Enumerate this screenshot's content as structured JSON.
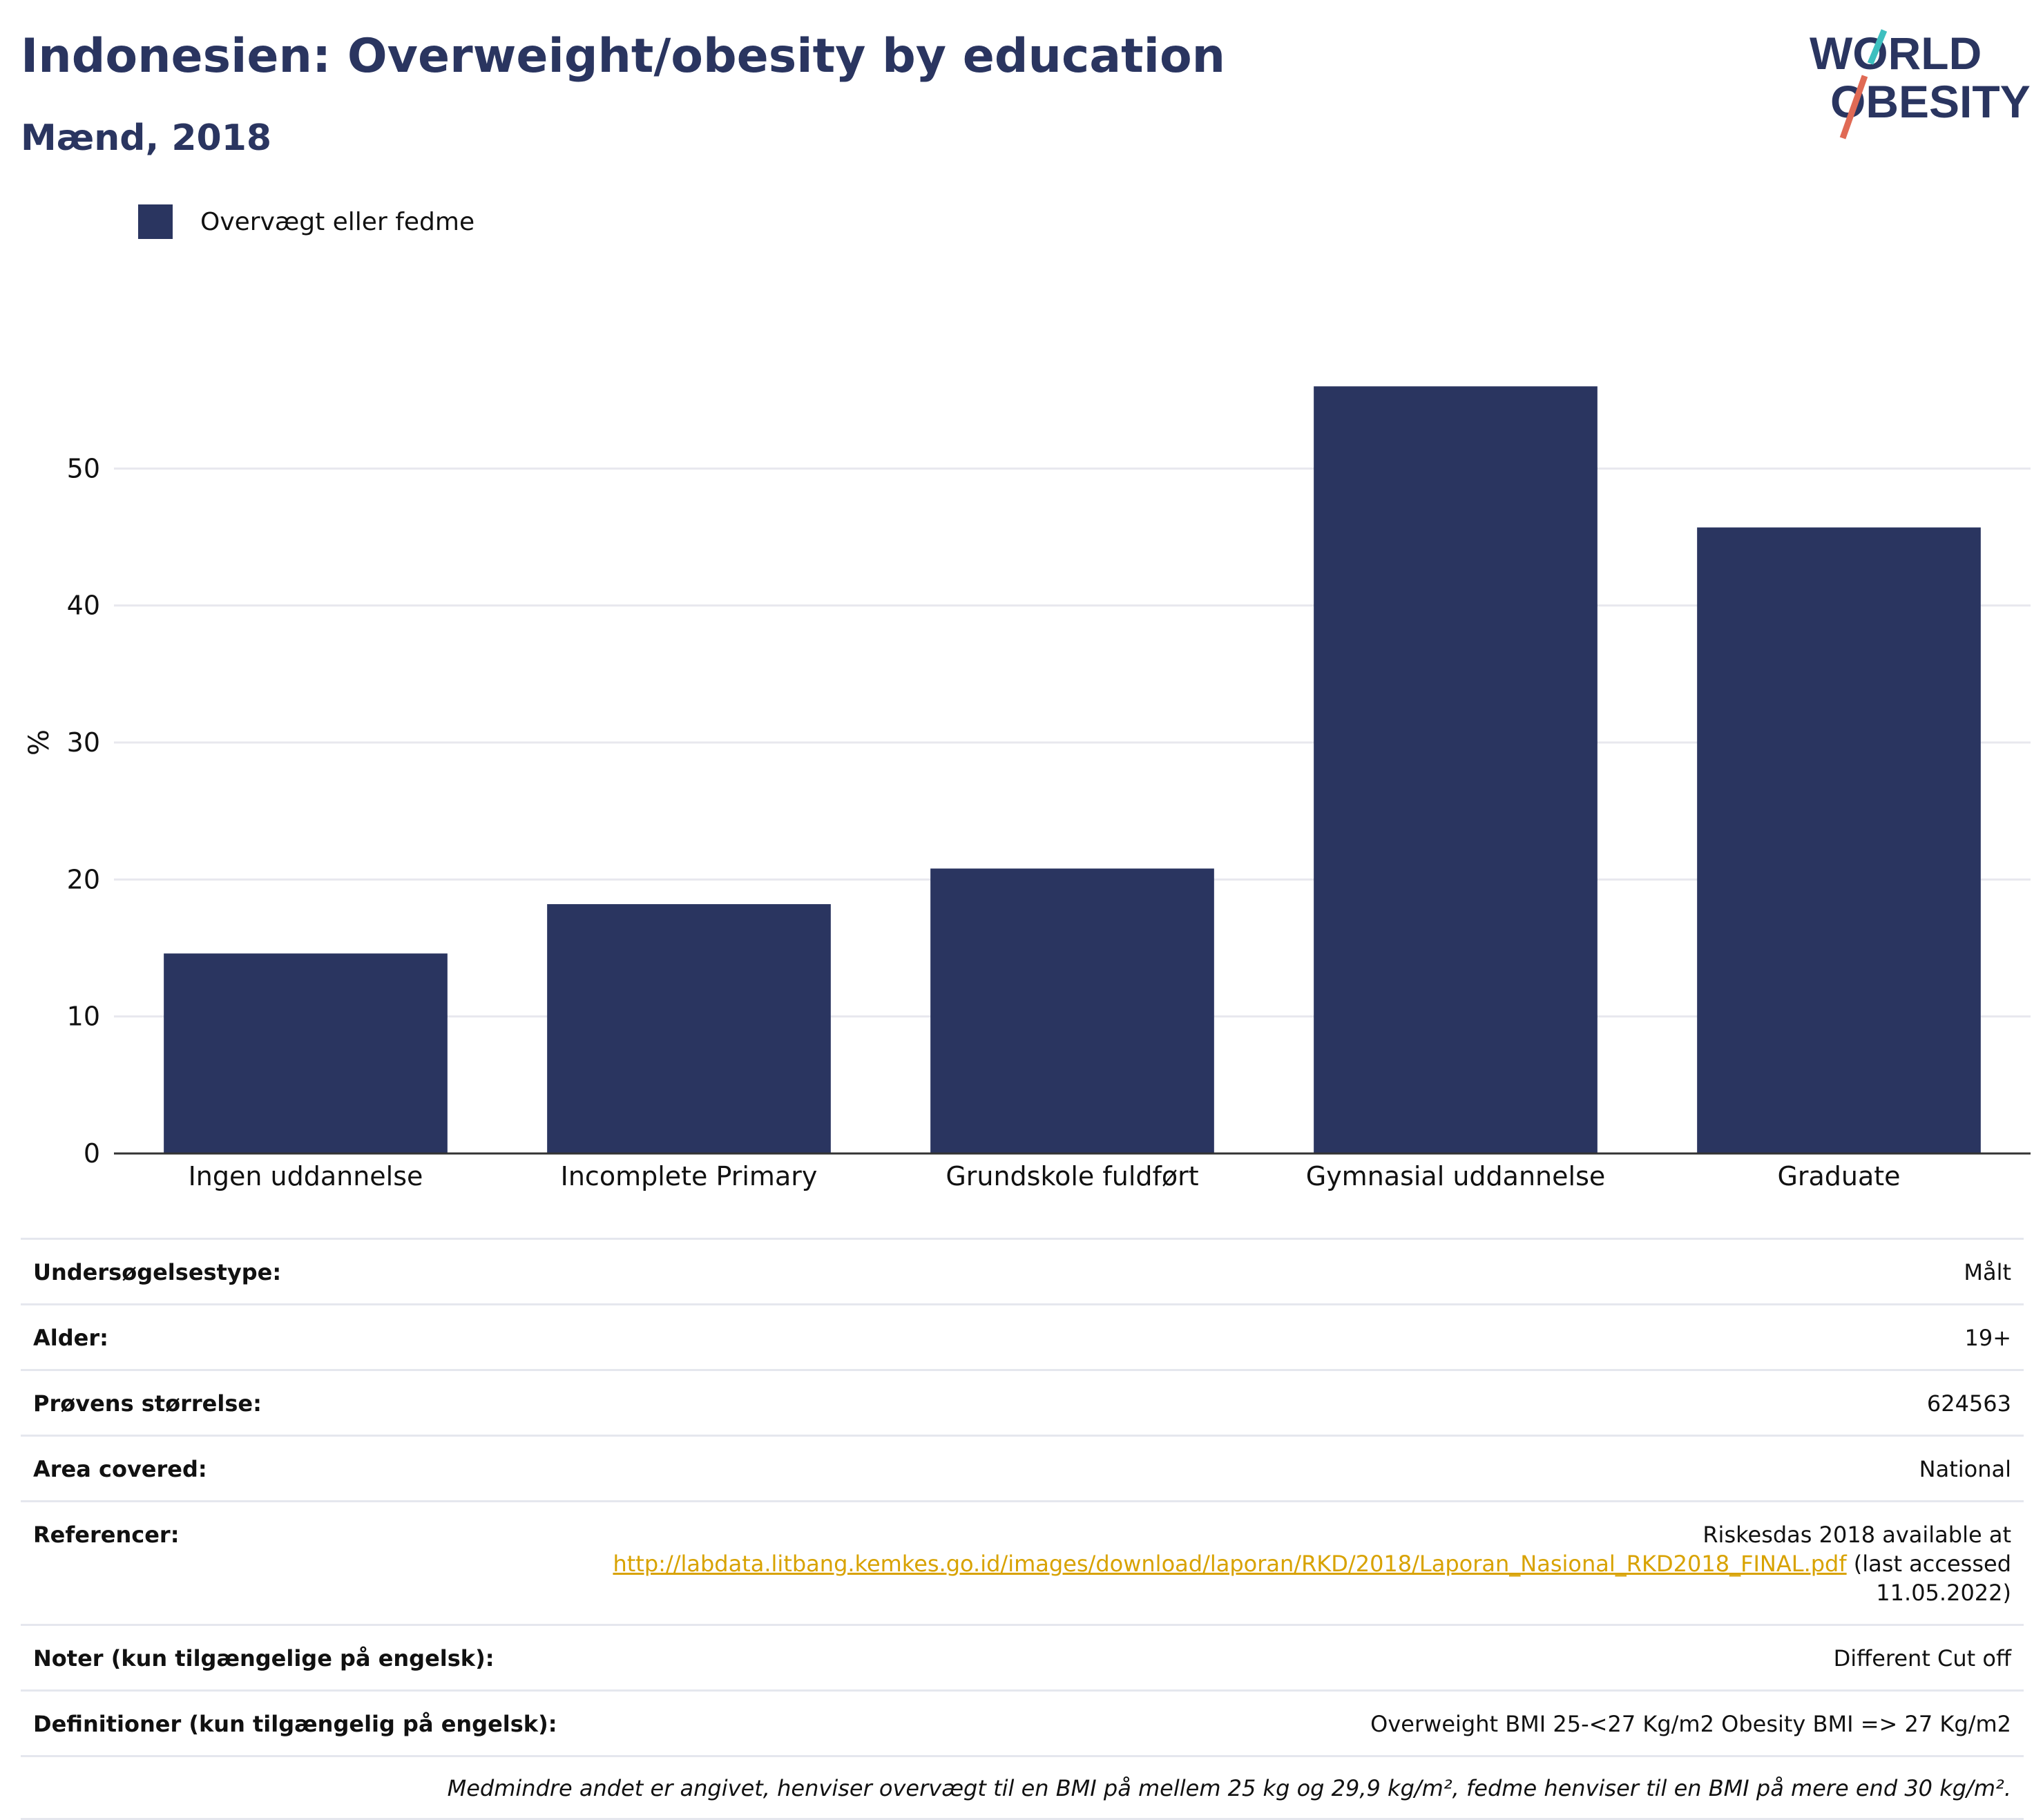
{
  "header": {
    "title": "Indonesien: Overweight/obesity by education",
    "subtitle": "Mænd, 2018",
    "logo_line1": "WORLD",
    "logo_line2": "OBESITY"
  },
  "chart_data": {
    "type": "bar",
    "categories": [
      "Ingen uddannelse",
      "Incomplete Primary",
      "Grundskole fuldført",
      "Gymnasial uddannelse",
      "Graduate"
    ],
    "series": [
      {
        "name": "Overvægt eller fedme",
        "values": [
          14.6,
          18.2,
          20.8,
          56.0,
          45.7
        ]
      }
    ],
    "ylabel": "%",
    "ylim": [
      0,
      60
    ],
    "yticks": [
      0,
      10,
      20,
      30,
      40,
      50
    ],
    "grid": true,
    "legend_position": "top-left",
    "bar_color": "#2a3560"
  },
  "info": {
    "rows": [
      {
        "label": "Undersøgelsestype:",
        "value": "Målt"
      },
      {
        "label": "Alder:",
        "value": "19+"
      },
      {
        "label": "Prøvens størrelse:",
        "value": "624563"
      },
      {
        "label": "Area covered:",
        "value": "National"
      }
    ],
    "references": {
      "label": "Referencer:",
      "text_before": "Riskesdas 2018 available at",
      "link": "http://labdata.litbang.kemkes.go.id/images/download/laporan/RKD/2018/Laporan_Nasional_RKD2018_FINAL.pdf",
      "text_after": "(last accessed 11.05.2022)"
    },
    "notes": {
      "label": "Noter (kun tilgængelige på engelsk):",
      "value": "Different Cut off"
    },
    "definitions": {
      "label": "Definitioner (kun tilgængelig på engelsk):",
      "value": "Overweight BMI 25-<27 Kg/m2 Obesity BMI => 27 Kg/m2"
    },
    "footnote": "Medmindre andet er angivet, henviser overvægt til en BMI på mellem 25 kg og 29,9 kg/m², fedme henviser til en BMI på mere end 30 kg/m²."
  }
}
